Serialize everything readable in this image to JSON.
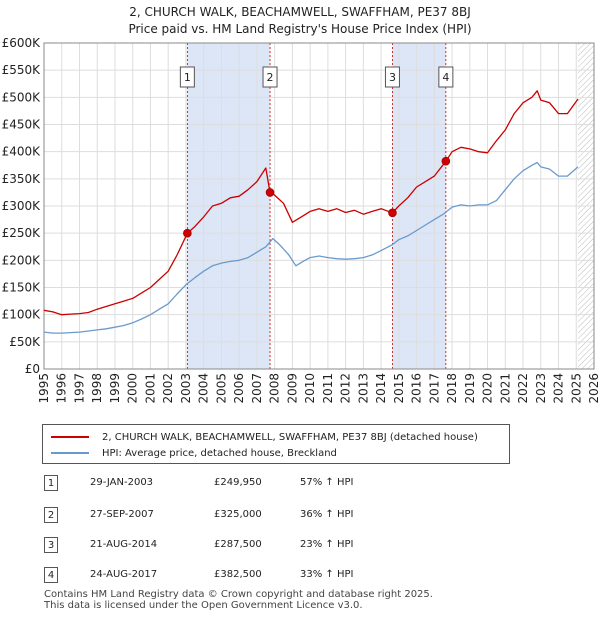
{
  "chart_data": {
    "type": "line",
    "title": "2, CHURCH WALK, BEACHAMWELL, SWAFFHAM, PE37 8BJ",
    "subtitle": "Price paid vs. HM Land Registry's House Price Index (HPI)",
    "xlim": [
      1995,
      2026
    ],
    "ylim": [
      0,
      600000
    ],
    "x_ticks": [
      1995,
      1996,
      1997,
      1998,
      1999,
      2000,
      2001,
      2002,
      2003,
      2004,
      2005,
      2006,
      2007,
      2008,
      2009,
      2010,
      2011,
      2012,
      2013,
      2014,
      2015,
      2016,
      2017,
      2018,
      2019,
      2020,
      2021,
      2022,
      2023,
      2024,
      2025,
      2026
    ],
    "y_ticks": [
      0,
      50000,
      100000,
      150000,
      200000,
      250000,
      300000,
      350000,
      400000,
      450000,
      500000,
      550000,
      600000
    ],
    "y_tick_labels": [
      "£0",
      "£50K",
      "£100K",
      "£150K",
      "£200K",
      "£250K",
      "£300K",
      "£350K",
      "£400K",
      "£450K",
      "£500K",
      "£550K",
      "£600K"
    ],
    "data_end_year": 2025.1,
    "sale_bands": [
      [
        2003.08,
        2007.74
      ],
      [
        2014.64,
        2017.65
      ]
    ],
    "series": [
      {
        "name": "2, CHURCH WALK, BEACHAMWELL, SWAFFHAM, PE37 8BJ (detached house)",
        "color": "#cc0000",
        "points": [
          [
            1995,
            108000
          ],
          [
            1995.5,
            105000
          ],
          [
            1996,
            100000
          ],
          [
            1996.5,
            101000
          ],
          [
            1997,
            102000
          ],
          [
            1997.5,
            104000
          ],
          [
            1998,
            110000
          ],
          [
            1998.5,
            115000
          ],
          [
            1999,
            120000
          ],
          [
            1999.5,
            125000
          ],
          [
            2000,
            130000
          ],
          [
            2000.5,
            140000
          ],
          [
            2001,
            150000
          ],
          [
            2001.5,
            165000
          ],
          [
            2002,
            180000
          ],
          [
            2002.5,
            210000
          ],
          [
            2003.08,
            249950
          ],
          [
            2003.5,
            262000
          ],
          [
            2004,
            280000
          ],
          [
            2004.5,
            300000
          ],
          [
            2005,
            305000
          ],
          [
            2005.5,
            315000
          ],
          [
            2006,
            318000
          ],
          [
            2006.5,
            330000
          ],
          [
            2007,
            345000
          ],
          [
            2007.5,
            370000
          ],
          [
            2007.74,
            325000
          ],
          [
            2008,
            320000
          ],
          [
            2008.5,
            305000
          ],
          [
            2009,
            270000
          ],
          [
            2009.5,
            280000
          ],
          [
            2010,
            290000
          ],
          [
            2010.5,
            295000
          ],
          [
            2011,
            290000
          ],
          [
            2011.5,
            295000
          ],
          [
            2012,
            288000
          ],
          [
            2012.5,
            292000
          ],
          [
            2013,
            285000
          ],
          [
            2013.5,
            290000
          ],
          [
            2014,
            295000
          ],
          [
            2014.64,
            287500
          ],
          [
            2015,
            300000
          ],
          [
            2015.5,
            315000
          ],
          [
            2016,
            335000
          ],
          [
            2016.5,
            345000
          ],
          [
            2017,
            355000
          ],
          [
            2017.65,
            382500
          ],
          [
            2018,
            400000
          ],
          [
            2018.5,
            408000
          ],
          [
            2019,
            405000
          ],
          [
            2019.5,
            400000
          ],
          [
            2020,
            398000
          ],
          [
            2020.5,
            420000
          ],
          [
            2021,
            440000
          ],
          [
            2021.5,
            470000
          ],
          [
            2022,
            490000
          ],
          [
            2022.5,
            500000
          ],
          [
            2022.8,
            512000
          ],
          [
            2023,
            495000
          ],
          [
            2023.5,
            490000
          ],
          [
            2024,
            470000
          ],
          [
            2024.5,
            470000
          ],
          [
            2025.1,
            497000
          ]
        ]
      },
      {
        "name": "HPI: Average price, detached house, Breckland",
        "color": "#6a9acd",
        "points": [
          [
            1995,
            68000
          ],
          [
            1995.5,
            66000
          ],
          [
            1996,
            66000
          ],
          [
            1996.5,
            67000
          ],
          [
            1997,
            68000
          ],
          [
            1997.5,
            70000
          ],
          [
            1998,
            72000
          ],
          [
            1998.5,
            74000
          ],
          [
            1999,
            77000
          ],
          [
            1999.5,
            80000
          ],
          [
            2000,
            85000
          ],
          [
            2000.5,
            92000
          ],
          [
            2001,
            100000
          ],
          [
            2001.5,
            110000
          ],
          [
            2002,
            120000
          ],
          [
            2002.5,
            138000
          ],
          [
            2003,
            155000
          ],
          [
            2003.5,
            168000
          ],
          [
            2004,
            180000
          ],
          [
            2004.5,
            190000
          ],
          [
            2005,
            195000
          ],
          [
            2005.5,
            198000
          ],
          [
            2006,
            200000
          ],
          [
            2006.5,
            205000
          ],
          [
            2007,
            215000
          ],
          [
            2007.5,
            225000
          ],
          [
            2007.9,
            240000
          ],
          [
            2008.3,
            228000
          ],
          [
            2008.8,
            210000
          ],
          [
            2009.2,
            190000
          ],
          [
            2009.6,
            198000
          ],
          [
            2010,
            205000
          ],
          [
            2010.5,
            208000
          ],
          [
            2011,
            205000
          ],
          [
            2011.5,
            203000
          ],
          [
            2012,
            202000
          ],
          [
            2012.5,
            203000
          ],
          [
            2013,
            205000
          ],
          [
            2013.5,
            210000
          ],
          [
            2014,
            218000
          ],
          [
            2014.6,
            228000
          ],
          [
            2015,
            238000
          ],
          [
            2015.5,
            245000
          ],
          [
            2016,
            255000
          ],
          [
            2016.5,
            265000
          ],
          [
            2017,
            275000
          ],
          [
            2017.5,
            285000
          ],
          [
            2018,
            298000
          ],
          [
            2018.5,
            302000
          ],
          [
            2019,
            300000
          ],
          [
            2019.5,
            302000
          ],
          [
            2020,
            302000
          ],
          [
            2020.5,
            310000
          ],
          [
            2021,
            330000
          ],
          [
            2021.5,
            350000
          ],
          [
            2022,
            365000
          ],
          [
            2022.5,
            375000
          ],
          [
            2022.8,
            380000
          ],
          [
            2023,
            372000
          ],
          [
            2023.5,
            368000
          ],
          [
            2024,
            355000
          ],
          [
            2024.5,
            355000
          ],
          [
            2025.1,
            372000
          ]
        ]
      }
    ],
    "sales": [
      {
        "label": "1",
        "x": 2003.08,
        "value": 249950,
        "date": "29-JAN-2003",
        "price": "£249,950",
        "hpi": "57% ↑ HPI"
      },
      {
        "label": "2",
        "x": 2007.74,
        "value": 325000,
        "date": "27-SEP-2007",
        "price": "£325,000",
        "hpi": "36% ↑ HPI"
      },
      {
        "label": "3",
        "x": 2014.64,
        "value": 287500,
        "date": "21-AUG-2014",
        "price": "£287,500",
        "hpi": "23% ↑ HPI"
      },
      {
        "label": "4",
        "x": 2017.65,
        "value": 382500,
        "date": "24-AUG-2017",
        "price": "£382,500",
        "hpi": "33% ↑ HPI"
      }
    ]
  },
  "footer": {
    "line1": "Contains HM Land Registry data © Crown copyright and database right 2025.",
    "line2": "This data is licensed under the Open Government Licence v3.0."
  },
  "colors": {
    "property": "#cc0000",
    "hpi": "#6a9acd",
    "band": "#dde6f7",
    "marker": "#cc0000"
  }
}
